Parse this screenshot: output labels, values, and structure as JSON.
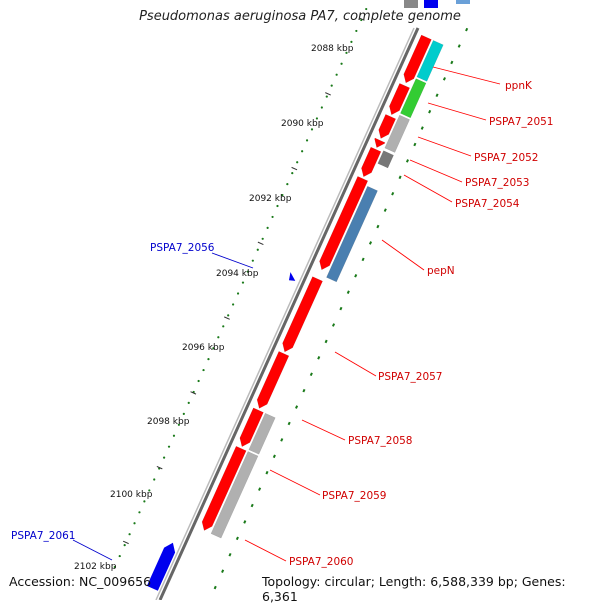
{
  "title": "Pseudomonas aeruginosa PA7, complete genome",
  "footer": {
    "accession": "Accession: NC_009656",
    "topology": "Topology: circular; Length: 6,588,339 bp; Genes: 6,361"
  },
  "colors": {
    "forward_gene": "#ff0000",
    "reverse_gene_label": "#0000cc",
    "cog_cyan": "#00cccc",
    "cog_green": "#33cc33",
    "cog_gray": "#b0b0b0",
    "cog_darkgray": "#777777",
    "cog_steelblue": "#4a7fb0",
    "tick_green": "#1a7a1a",
    "backbone": "#808080"
  },
  "ticks": [
    "2088 kbp",
    "2090 kbp",
    "2092 kbp",
    "2094 kbp",
    "2096 kbp",
    "2098 kbp",
    "2100 kbp",
    "2102 kbp"
  ],
  "gene_labels": [
    {
      "name": "ppnK",
      "strand": "forward"
    },
    {
      "name": "PSPA7_2051",
      "strand": "forward"
    },
    {
      "name": "PSPA7_2052",
      "strand": "forward"
    },
    {
      "name": "PSPA7_2053",
      "strand": "forward"
    },
    {
      "name": "PSPA7_2054",
      "strand": "forward"
    },
    {
      "name": "pepN",
      "strand": "forward"
    },
    {
      "name": "PSPA7_2057",
      "strand": "forward"
    },
    {
      "name": "PSPA7_2058",
      "strand": "forward"
    },
    {
      "name": "PSPA7_2059",
      "strand": "forward"
    },
    {
      "name": "PSPA7_2060",
      "strand": "forward"
    },
    {
      "name": "PSPA7_2056",
      "strand": "reverse"
    },
    {
      "name": "PSPA7_2061",
      "strand": "reverse"
    }
  ]
}
